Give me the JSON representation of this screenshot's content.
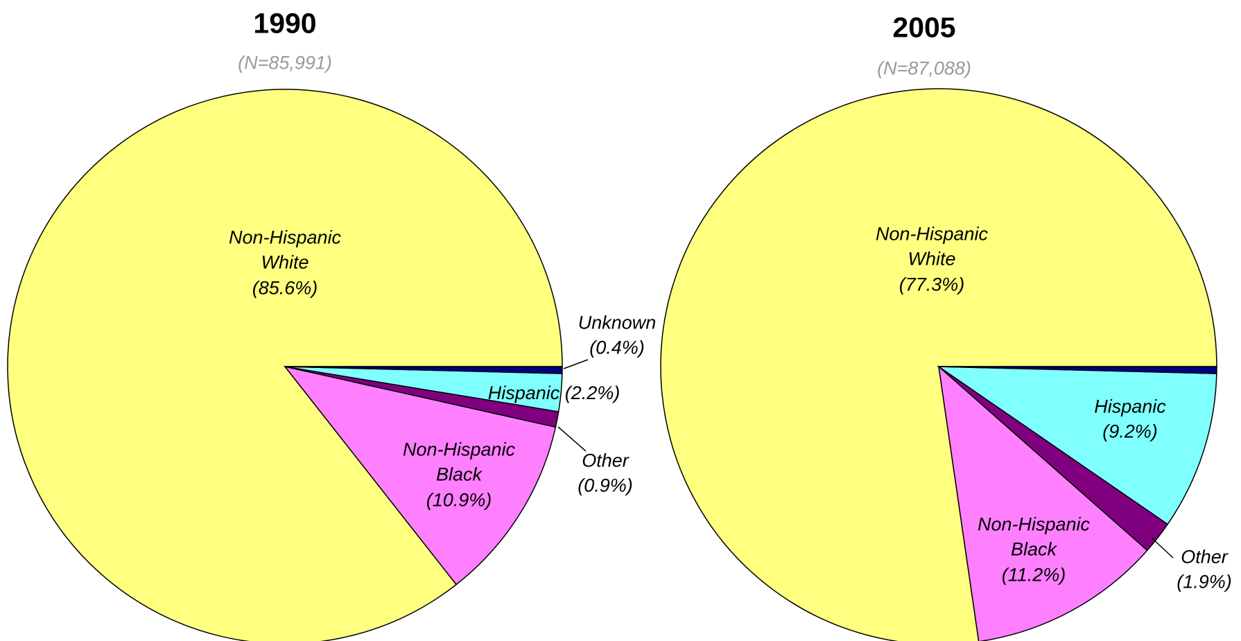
{
  "chart_data": [
    {
      "type": "pie",
      "title": "1990",
      "subtitle": "(N=85,991)",
      "categories": [
        "Non-Hispanic White",
        "Non-Hispanic Black",
        "Other",
        "Hispanic",
        "Unknown"
      ],
      "values": [
        85.6,
        10.9,
        0.9,
        2.2,
        0.4
      ],
      "value_labels": [
        "(85.6%)",
        "(10.9%)",
        "(0.9%)",
        "(2.2%)",
        "(0.4%)"
      ],
      "colors": [
        "#ffff80",
        "#ff80ff",
        "#800080",
        "#80ffff",
        "#000080"
      ]
    },
    {
      "type": "pie",
      "title": "2005",
      "subtitle": "(N=87,088)",
      "categories": [
        "Non-Hispanic White",
        "Non-Hispanic Black",
        "Other",
        "Hispanic",
        null
      ],
      "values": [
        77.3,
        11.2,
        1.9,
        9.2,
        0.4
      ],
      "value_labels": [
        "(77.3%)",
        "(11.2%)",
        "(1.9%)",
        "(9.2%)",
        null
      ],
      "colors": [
        "#ffff80",
        "#ff80ff",
        "#800080",
        "#80ffff",
        "#000080"
      ]
    }
  ]
}
